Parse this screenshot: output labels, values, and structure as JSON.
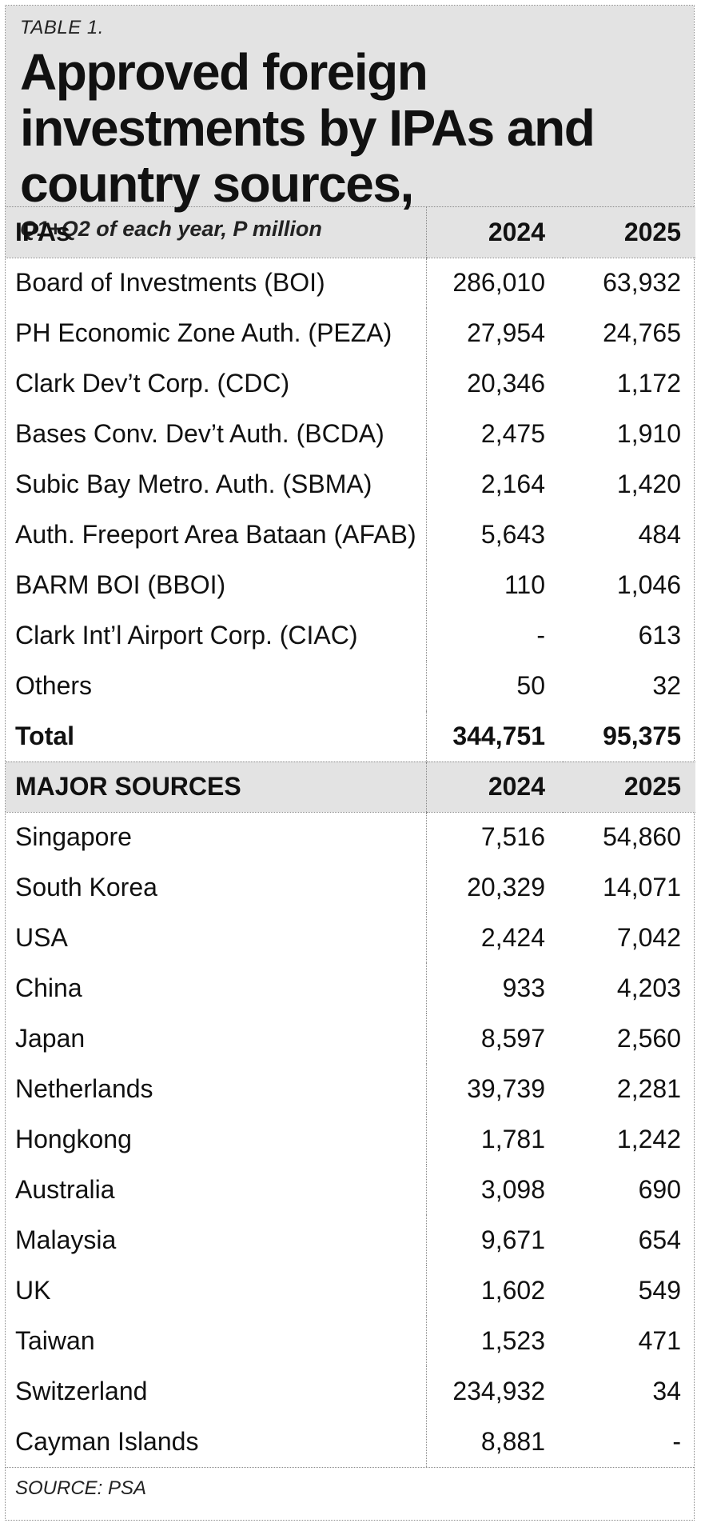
{
  "chart_data": {
    "type": "table",
    "kicker": "TABLE 1.",
    "title": "Approved foreign investments by IPAs and country sources,",
    "subtitle": "Q1+Q2 of each year, P million",
    "source": "SOURCE: PSA",
    "sections": [
      {
        "header": [
          "IPAs",
          "2024",
          "2025"
        ],
        "rows": [
          [
            "Board of Investments (BOI)",
            "286,010",
            "63,932"
          ],
          [
            "PH Economic Zone Auth. (PEZA)",
            "27,954",
            "24,765"
          ],
          [
            "Clark Dev’t Corp. (CDC)",
            "20,346",
            "1,172"
          ],
          [
            "Bases Conv. Dev’t Auth. (BCDA)",
            "2,475",
            "1,910"
          ],
          [
            "Subic Bay Metro. Auth. (SBMA)",
            "2,164",
            "1,420"
          ],
          [
            "Auth. Freeport Area Bataan (AFAB)",
            "5,643",
            "484"
          ],
          [
            "BARM BOI (BBOI)",
            "110",
            "1,046"
          ],
          [
            "Clark Int’l Airport Corp. (CIAC)",
            "-",
            "613"
          ],
          [
            "Others",
            "50",
            "32"
          ]
        ],
        "total": [
          "Total",
          "344,751",
          "95,375"
        ]
      },
      {
        "header": [
          "MAJOR SOURCES",
          "2024",
          "2025"
        ],
        "rows": [
          [
            "Singapore",
            "7,516",
            "54,860"
          ],
          [
            "South Korea",
            "20,329",
            "14,071"
          ],
          [
            "USA",
            "2,424",
            "7,042"
          ],
          [
            "China",
            "933",
            "4,203"
          ],
          [
            "Japan",
            "8,597",
            "2,560"
          ],
          [
            "Netherlands",
            "39,739",
            "2,281"
          ],
          [
            "Hongkong",
            "1,781",
            "1,242"
          ],
          [
            "Australia",
            "3,098",
            "690"
          ],
          [
            "Malaysia",
            "9,671",
            "654"
          ],
          [
            "UK",
            "1,602",
            "549"
          ],
          [
            "Taiwan",
            "1,523",
            "471"
          ],
          [
            "Switzerland",
            "234,932",
            "34"
          ],
          [
            "Cayman Islands",
            "8,881",
            "-"
          ]
        ]
      }
    ]
  }
}
